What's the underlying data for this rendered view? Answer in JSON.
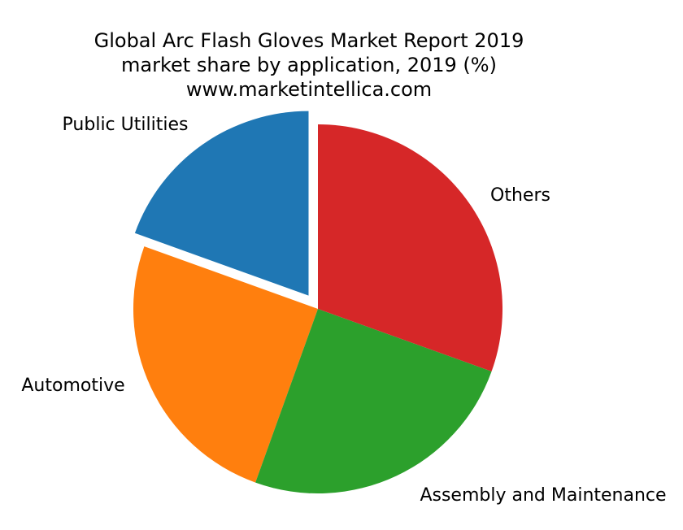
{
  "chart_data": {
    "type": "pie",
    "title_lines": [
      "Global Arc Flash Gloves Market Report 2019",
      "market share by application, 2019 (%)",
      "www.marketintellica.com"
    ],
    "slices": [
      {
        "label": "Public Utilities",
        "value": 19.5,
        "color": "#1f77b4",
        "exploded": true
      },
      {
        "label": "Automotive",
        "value": 25,
        "color": "#ff7f0e",
        "exploded": false
      },
      {
        "label": "Assembly and Maintenance",
        "value": 25,
        "color": "#2ca02c",
        "exploded": false
      },
      {
        "label": "Others",
        "value": 30.5,
        "color": "#d62728",
        "exploded": false
      }
    ],
    "start_angle": "top",
    "direction": "counterclockwise",
    "legend": "none"
  }
}
